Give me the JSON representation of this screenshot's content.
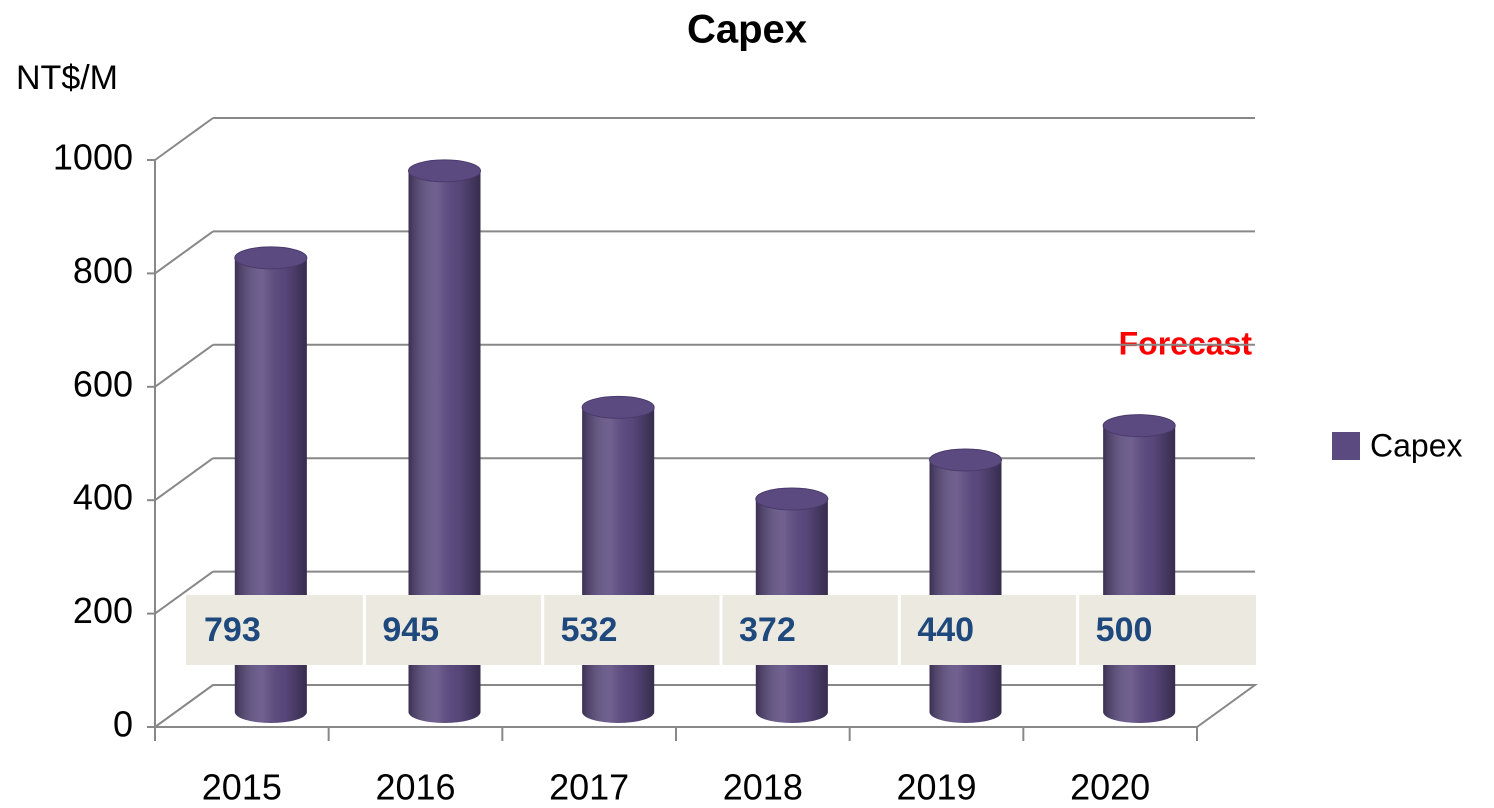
{
  "chart_data": {
    "type": "bar3d",
    "title": "Capex",
    "y_label": "NT$/M",
    "categories": [
      "2015",
      "2016",
      "2017",
      "2018",
      "2019",
      "2020"
    ],
    "series": [
      {
        "name": "Capex",
        "color": "#5b4a80",
        "values": [
          793,
          945,
          532,
          372,
          440,
          500
        ]
      }
    ],
    "ylim": [
      0,
      1000
    ],
    "yticks": [
      0,
      200,
      400,
      600,
      800,
      1000
    ],
    "grid": true,
    "annotation": "Forecast",
    "legend": "right",
    "data_table": true
  }
}
